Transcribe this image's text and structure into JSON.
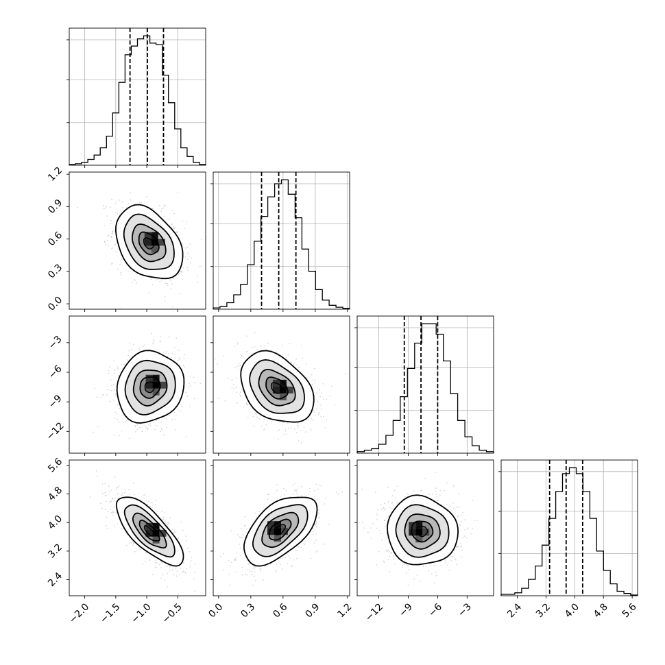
{
  "chart_data": {
    "type": "corner",
    "grid": true,
    "colors": {
      "ink": "#000000",
      "grid": "#b0b0b0",
      "samples": "#a8a8a8"
    },
    "params": [
      {
        "range": [
          -2.25,
          -0.05
        ],
        "ticks": [
          -2.0,
          -1.5,
          -1.0,
          -0.5
        ],
        "tick_labels": [
          "−2.0",
          "−1.5",
          "−1.0",
          "−0.5"
        ],
        "quantiles": [
          -1.27,
          -0.99,
          -0.73
        ],
        "hist_edges": [
          -2.25,
          -0.05
        ],
        "hist_values": [
          0.5,
          1.0,
          2.0,
          4.0,
          7.0,
          12.0,
          20.0,
          36.0,
          57.0,
          76.0,
          82.0,
          87.0,
          89.0,
          84.0,
          83.0,
          62.0,
          43.0,
          25.0,
          12.0,
          6.0,
          2.0,
          0.5
        ]
      },
      {
        "range": [
          -0.05,
          1.22
        ],
        "ticks": [
          0.0,
          0.3,
          0.6,
          0.9,
          1.2
        ],
        "tick_labels": [
          "0.0",
          "0.3",
          "0.6",
          "0.9",
          "1.2"
        ],
        "quantiles": [
          0.4,
          0.56,
          0.72
        ],
        "hist_edges": [
          -0.05,
          1.22
        ],
        "hist_values": [
          1.0,
          2.0,
          5.0,
          11.0,
          19.0,
          34.0,
          52.0,
          71.0,
          86.0,
          96.0,
          99.0,
          88.0,
          70.0,
          46.0,
          29.0,
          15.0,
          7.0,
          3.0,
          1.5,
          0.7
        ]
      },
      {
        "range": [
          -14.2,
          -0.3
        ],
        "ticks": [
          -12,
          -9,
          -6,
          -3
        ],
        "tick_labels": [
          "−12",
          "−9",
          "−6",
          "−3"
        ],
        "quantiles": [
          -9.4,
          -7.7,
          -6.0
        ],
        "hist_edges": [
          -14.2,
          -0.3
        ],
        "hist_values": [
          1.0,
          2.0,
          3.0,
          6.0,
          12.0,
          22.0,
          38.0,
          57.0,
          74.0,
          87.0,
          87.0,
          80.0,
          62.0,
          40.0,
          22.0,
          11.0,
          5.0,
          2.0,
          1.0
        ]
      },
      {
        "range": [
          1.95,
          5.75
        ],
        "ticks": [
          2.4,
          3.2,
          4.0,
          4.8,
          5.6
        ],
        "tick_labels": [
          "2.4",
          "3.2",
          "4.0",
          "4.8",
          "5.6"
        ],
        "quantiles": [
          3.3,
          3.76,
          4.22
        ],
        "hist_edges": [
          1.95,
          5.75
        ],
        "hist_values": [
          1.0,
          1.0,
          2.0,
          5.0,
          11.0,
          20.0,
          34.0,
          52.0,
          70.0,
          82.0,
          86.0,
          82.0,
          70.0,
          52.0,
          30.0,
          17.0,
          8.0,
          3.0,
          1.5,
          0.5
        ]
      }
    ],
    "joint": [
      {
        "row": 1,
        "col": 0,
        "mean": [
          -0.97,
          0.56
        ],
        "sd": [
          0.27,
          0.17
        ],
        "rho": -0.35,
        "contour_sigma": [
          0.6,
          1.0,
          1.5,
          2.0
        ],
        "peak": [
          -0.87,
          0.57
        ]
      },
      {
        "row": 2,
        "col": 0,
        "mean": [
          -0.95,
          -7.5
        ],
        "sd": [
          0.27,
          1.8
        ],
        "rho": 0.1,
        "contour_sigma": [
          0.6,
          1.0,
          1.5,
          2.0
        ],
        "peak": [
          -0.85,
          -7.3
        ]
      },
      {
        "row": 2,
        "col": 1,
        "mean": [
          0.54,
          -7.6
        ],
        "sd": [
          0.17,
          1.8
        ],
        "rho": -0.35,
        "contour_sigma": [
          0.6,
          1.0,
          1.5,
          2.0
        ],
        "peak": [
          0.6,
          -7.8
        ]
      },
      {
        "row": 3,
        "col": 0,
        "mean": [
          -0.96,
          3.76
        ],
        "sd": [
          0.27,
          0.48
        ],
        "rho": -0.75,
        "contour_sigma": [
          0.6,
          1.0,
          1.5,
          2.0
        ],
        "peak": [
          -0.85,
          3.7
        ]
      },
      {
        "row": 3,
        "col": 1,
        "mean": [
          0.57,
          3.8
        ],
        "sd": [
          0.17,
          0.48
        ],
        "rho": 0.55,
        "contour_sigma": [
          0.6,
          1.0,
          1.5,
          2.0
        ],
        "peak": [
          0.55,
          3.75
        ]
      },
      {
        "row": 3,
        "col": 2,
        "mean": [
          -7.6,
          3.76
        ],
        "sd": [
          1.8,
          0.48
        ],
        "rho": -0.05,
        "contour_sigma": [
          0.6,
          1.0,
          1.5,
          2.0
        ],
        "peak": [
          -7.9,
          3.73
        ]
      }
    ]
  }
}
